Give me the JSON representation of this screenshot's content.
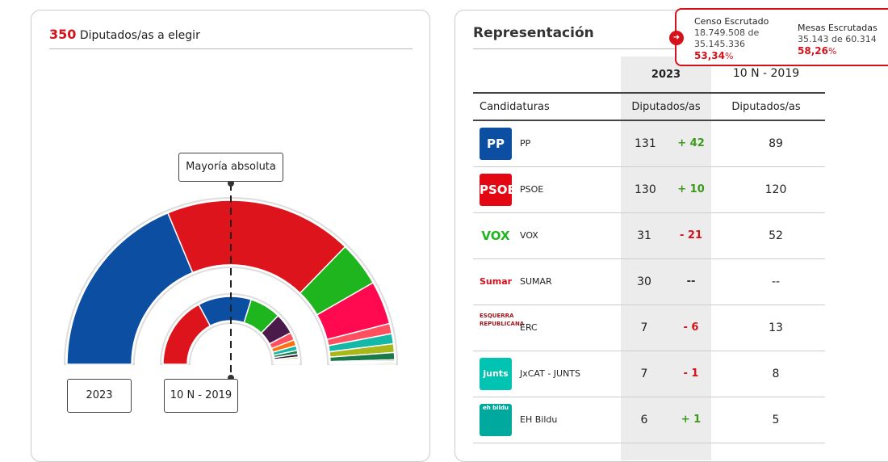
{
  "left": {
    "seats": "350",
    "seats_label": "Diputados/as a elegir",
    "majority_label": "Mayoría absoluta",
    "year_current": "2023",
    "year_previous": "10 N - 2019"
  },
  "popup": {
    "censo_title": "Censo Escrutado",
    "censo_value": "18.749.508 de",
    "censo_total": "35.145.336",
    "censo_pct": "53,34",
    "mesas_title": "Mesas Escrutadas",
    "mesas_value": "35.143 de 60.314",
    "mesas_pct": "58,26",
    "pct_sign": "%"
  },
  "right": {
    "title": "Representación",
    "col_current": "2023",
    "col_previous": "10 N - 2019",
    "h_cand": "Candidaturas",
    "h_dip": "Diputados/as",
    "h_dip2": "Diputados/as",
    "rows": [
      {
        "logo": "PP",
        "name": "PP",
        "seats": "131",
        "diff": "+ 42",
        "prev": "89",
        "color": "#0b4ea2",
        "dc": "#3a9a1a"
      },
      {
        "logo": "PSOE",
        "name": "PSOE",
        "seats": "130",
        "diff": "+ 10",
        "prev": "120",
        "color": "#e30613",
        "dc": "#3a9a1a"
      },
      {
        "logo": "VOX",
        "name": "VOX",
        "seats": "31",
        "diff": "- 21",
        "prev": "52",
        "color": "#fff",
        "dc": "#d5121c"
      },
      {
        "logo": "Sumar",
        "name": "SUMAR",
        "seats": "30",
        "diff": "--",
        "prev": "--",
        "color": "#fff",
        "dc": "#333"
      },
      {
        "logo": "ESQUERRA REPUBLICANA",
        "name": "ERC",
        "seats": "7",
        "diff": "- 6",
        "prev": "13",
        "color": "#fff",
        "dc": "#d5121c"
      },
      {
        "logo": "junts",
        "name": "JxCAT - JUNTS",
        "seats": "7",
        "diff": "- 1",
        "prev": "8",
        "color": "#00c3b2",
        "dc": "#d5121c"
      },
      {
        "logo": "eh bildu",
        "name": "EH Bildu",
        "seats": "6",
        "diff": "+ 1",
        "prev": "5",
        "color": "#00a99d",
        "dc": "#3a9a1a"
      }
    ]
  },
  "chart_data": {
    "type": "pie",
    "subtype": "hemicycle",
    "total": 350,
    "majority": 176,
    "series": [
      {
        "name": "2023",
        "values": [
          131,
          130,
          31,
          30,
          7,
          7,
          6,
          5,
          1,
          1,
          1
        ],
        "colors": [
          "#0b4ea2",
          "#dd141b",
          "#1fb51f",
          "#ff0a50",
          "#ff5060",
          "#14b8a6",
          "#a8b81a",
          "#1a7a4a",
          "#6b4a8a",
          "#f5e000",
          "#7fbfdf"
        ]
      },
      {
        "name": "10 N - 2019",
        "values": [
          120,
          89,
          52,
          35,
          13,
          10,
          8,
          6,
          5,
          3,
          2,
          2,
          1,
          1,
          1,
          1,
          1
        ],
        "colors": [
          "#dd141b",
          "#0b4ea2",
          "#1fb51f",
          "#4a1a4a",
          "#ff5060",
          "#ff7010",
          "#14b8a6",
          "#1a7a4a",
          "#2a1a3a",
          "#a8b81a",
          "#7a3a8a",
          "#3a8a5a",
          "#f5e000",
          "#ffb0b0",
          "#aaa",
          "#c0d040",
          "#ccc"
        ]
      }
    ]
  }
}
